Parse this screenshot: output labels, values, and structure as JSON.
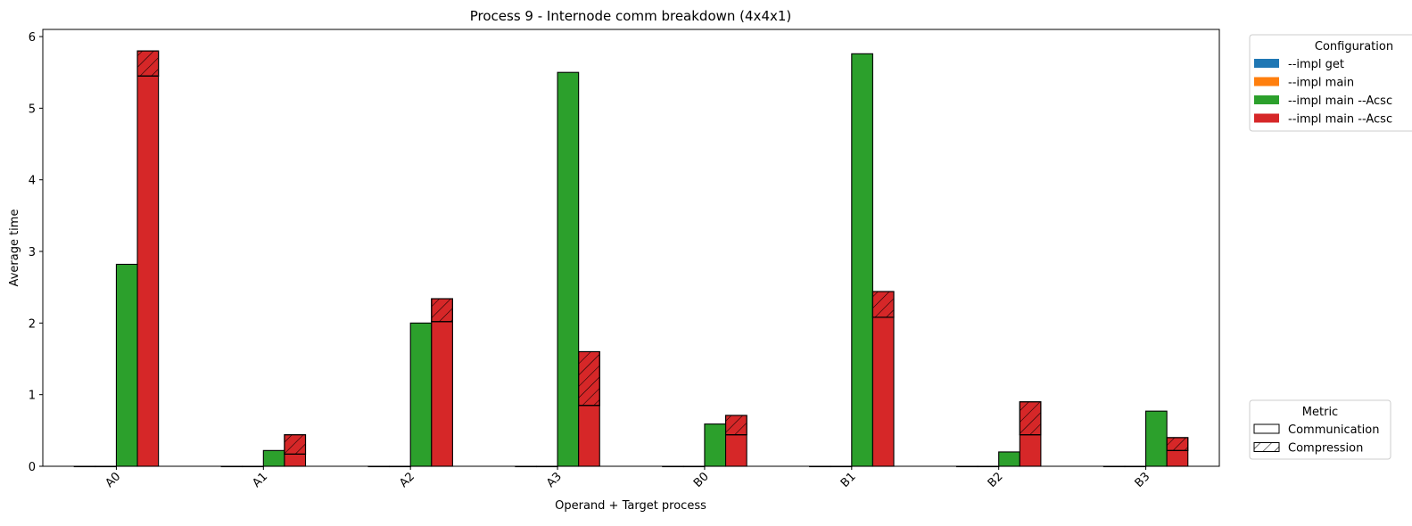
{
  "chart_data": {
    "type": "bar",
    "title": "Process 9 - Internode comm breakdown (4x4x1)",
    "xlabel": "Operand + Target process",
    "ylabel": "Average time",
    "ylim": [
      0,
      6.1
    ],
    "yticks": [
      0,
      1,
      2,
      3,
      4,
      5,
      6
    ],
    "categories": [
      "A0",
      "A1",
      "A2",
      "A3",
      "B0",
      "B1",
      "B2",
      "B3"
    ],
    "stacked_metrics": [
      "Communication",
      "Compression"
    ],
    "series": [
      {
        "name": "--impl get",
        "color": "#1f77b4",
        "communication": [
          0,
          0,
          0,
          0,
          0,
          0,
          0,
          0
        ],
        "compression": [
          0,
          0,
          0,
          0,
          0,
          0,
          0,
          0
        ]
      },
      {
        "name": "--impl main",
        "color": "#ff7f0e",
        "communication": [
          0,
          0,
          0,
          0,
          0,
          0,
          0,
          0
        ],
        "compression": [
          0,
          0,
          0,
          0,
          0,
          0,
          0,
          0
        ]
      },
      {
        "name": "--impl main --Acsc",
        "color": "#2ca02c",
        "communication": [
          2.82,
          0.22,
          2.0,
          5.5,
          0.59,
          5.76,
          0.2,
          0.77
        ],
        "compression": [
          0,
          0,
          0,
          0,
          0,
          0,
          0,
          0
        ]
      },
      {
        "name": "--impl main --Acsc",
        "color": "#d62728",
        "communication": [
          5.45,
          0.17,
          2.02,
          0.85,
          0.44,
          2.08,
          0.44,
          0.22
        ],
        "compression": [
          0.35,
          0.27,
          0.32,
          0.75,
          0.27,
          0.36,
          0.46,
          0.18
        ]
      }
    ],
    "legend_config": {
      "title": "Configuration",
      "placement": "outside-top-right",
      "entries": [
        "--impl get",
        "--impl main",
        "--impl main --Acsc",
        "--impl main --Acsc"
      ]
    },
    "legend_metric": {
      "title": "Metric",
      "placement": "outside-bottom-right",
      "entries": [
        "Communication",
        "Compression"
      ]
    },
    "grid": false
  }
}
